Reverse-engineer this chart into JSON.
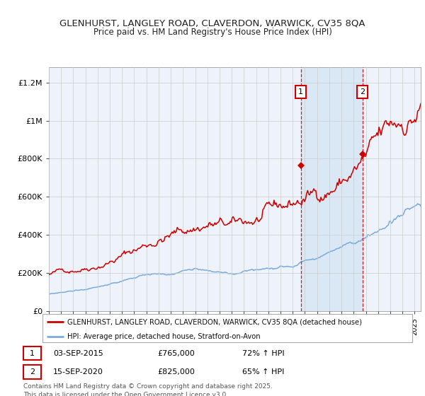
{
  "title1": "GLENHURST, LANGLEY ROAD, CLAVERDON, WARWICK, CV35 8QA",
  "title2": "Price paid vs. HM Land Registry's House Price Index (HPI)",
  "ylabel_ticks": [
    "£0",
    "£200K",
    "£400K",
    "£600K",
    "£800K",
    "£1M",
    "£1.2M"
  ],
  "ytick_vals": [
    0,
    200000,
    400000,
    600000,
    800000,
    1000000,
    1200000
  ],
  "ylim": [
    0,
    1280000
  ],
  "xlim_start": 1995,
  "xlim_end": 2025.5,
  "legend_label_red": "GLENHURST, LANGLEY ROAD, CLAVERDON, WARWICK, CV35 8QA (detached house)",
  "legend_label_blue": "HPI: Average price, detached house, Stratford-on-Avon",
  "marker1_date": 2015.67,
  "marker1_price": 765000,
  "marker2_date": 2020.71,
  "marker2_price": 825000,
  "color_red": "#cc0000",
  "color_blue": "#7aabdb",
  "color_dashed": "#cc0000",
  "color_marker_box": "#cc0000",
  "bg_color": "#eef2fa",
  "shade_color": "#d8e6f5",
  "grid_color": "#cccccc",
  "footer": "Contains HM Land Registry data © Crown copyright and database right 2025.\nThis data is licensed under the Open Government Licence v3.0."
}
